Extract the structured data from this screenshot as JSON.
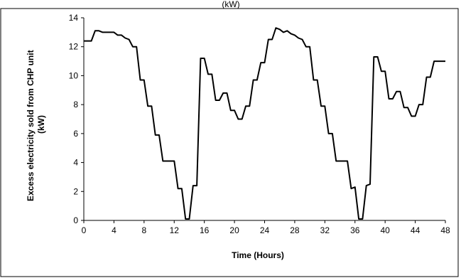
{
  "partial_title_text": "(kW)",
  "chart_data": {
    "type": "line",
    "title": "",
    "xlabel": "Time (Hours)",
    "ylabel_line1": "Excess electricity sold from CHP unit",
    "ylabel_line2": "(kW)",
    "xlim": [
      0,
      48
    ],
    "ylim": [
      0,
      14
    ],
    "x_ticks": [
      0,
      4,
      8,
      12,
      16,
      20,
      24,
      28,
      32,
      36,
      40,
      44,
      48
    ],
    "y_ticks": [
      0,
      2,
      4,
      6,
      8,
      10,
      12,
      14
    ],
    "grid": false,
    "legend": "none",
    "line_color": "#000000",
    "series": [
      {
        "x": [
          0,
          0.5,
          1,
          1.5,
          2,
          2.5,
          3,
          3.5,
          4,
          4.5,
          5,
          5.5,
          6,
          6.5,
          7,
          7.5,
          8,
          8.5,
          9,
          9.5,
          10,
          10.5,
          11,
          11.5,
          12,
          12.5,
          13,
          13.5,
          14,
          14.5,
          15,
          15.5,
          16,
          16.5,
          17,
          17.5,
          18,
          18.5,
          19,
          19.5,
          20,
          20.5,
          21,
          21.5,
          22,
          22.5,
          23,
          23.5,
          24,
          24.5,
          25,
          25.5,
          26,
          26.5,
          27,
          27.5,
          28,
          28.5,
          29,
          29.5,
          30,
          30.5,
          31,
          31.5,
          32,
          32.5,
          33,
          33.5,
          34,
          34.5,
          35,
          35.5,
          36,
          36.5,
          37,
          37.5,
          38,
          38.5,
          39,
          39.5,
          40,
          40.5,
          41,
          41.5,
          42,
          42.5,
          43,
          43.5,
          44,
          44.5,
          45,
          45.5,
          46,
          46.5,
          47,
          47.5,
          48
        ],
        "y": [
          12.4,
          12.4,
          12.4,
          13.1,
          13.1,
          13.0,
          13.0,
          13.0,
          13.0,
          12.8,
          12.8,
          12.6,
          12.5,
          12.0,
          12.0,
          9.7,
          9.7,
          7.9,
          7.9,
          5.9,
          5.9,
          4.1,
          4.1,
          4.1,
          4.1,
          2.2,
          2.2,
          0.1,
          0.1,
          2.4,
          2.4,
          11.2,
          11.2,
          10.1,
          10.1,
          8.3,
          8.3,
          8.8,
          8.8,
          7.6,
          7.6,
          7.0,
          7.0,
          7.9,
          7.9,
          9.7,
          9.7,
          10.9,
          10.9,
          12.5,
          12.5,
          13.3,
          13.2,
          13.0,
          13.1,
          12.9,
          12.8,
          12.6,
          12.5,
          12.0,
          12.0,
          9.7,
          9.7,
          7.9,
          7.9,
          6.0,
          6.0,
          4.1,
          4.1,
          4.1,
          4.1,
          2.2,
          2.3,
          0.1,
          0.1,
          2.4,
          2.5,
          11.3,
          11.3,
          10.3,
          10.3,
          8.4,
          8.4,
          8.9,
          8.9,
          7.8,
          7.8,
          7.2,
          7.2,
          8.0,
          8.0,
          9.9,
          9.9,
          11.0,
          11.0,
          11.0,
          11.0
        ]
      }
    ]
  }
}
